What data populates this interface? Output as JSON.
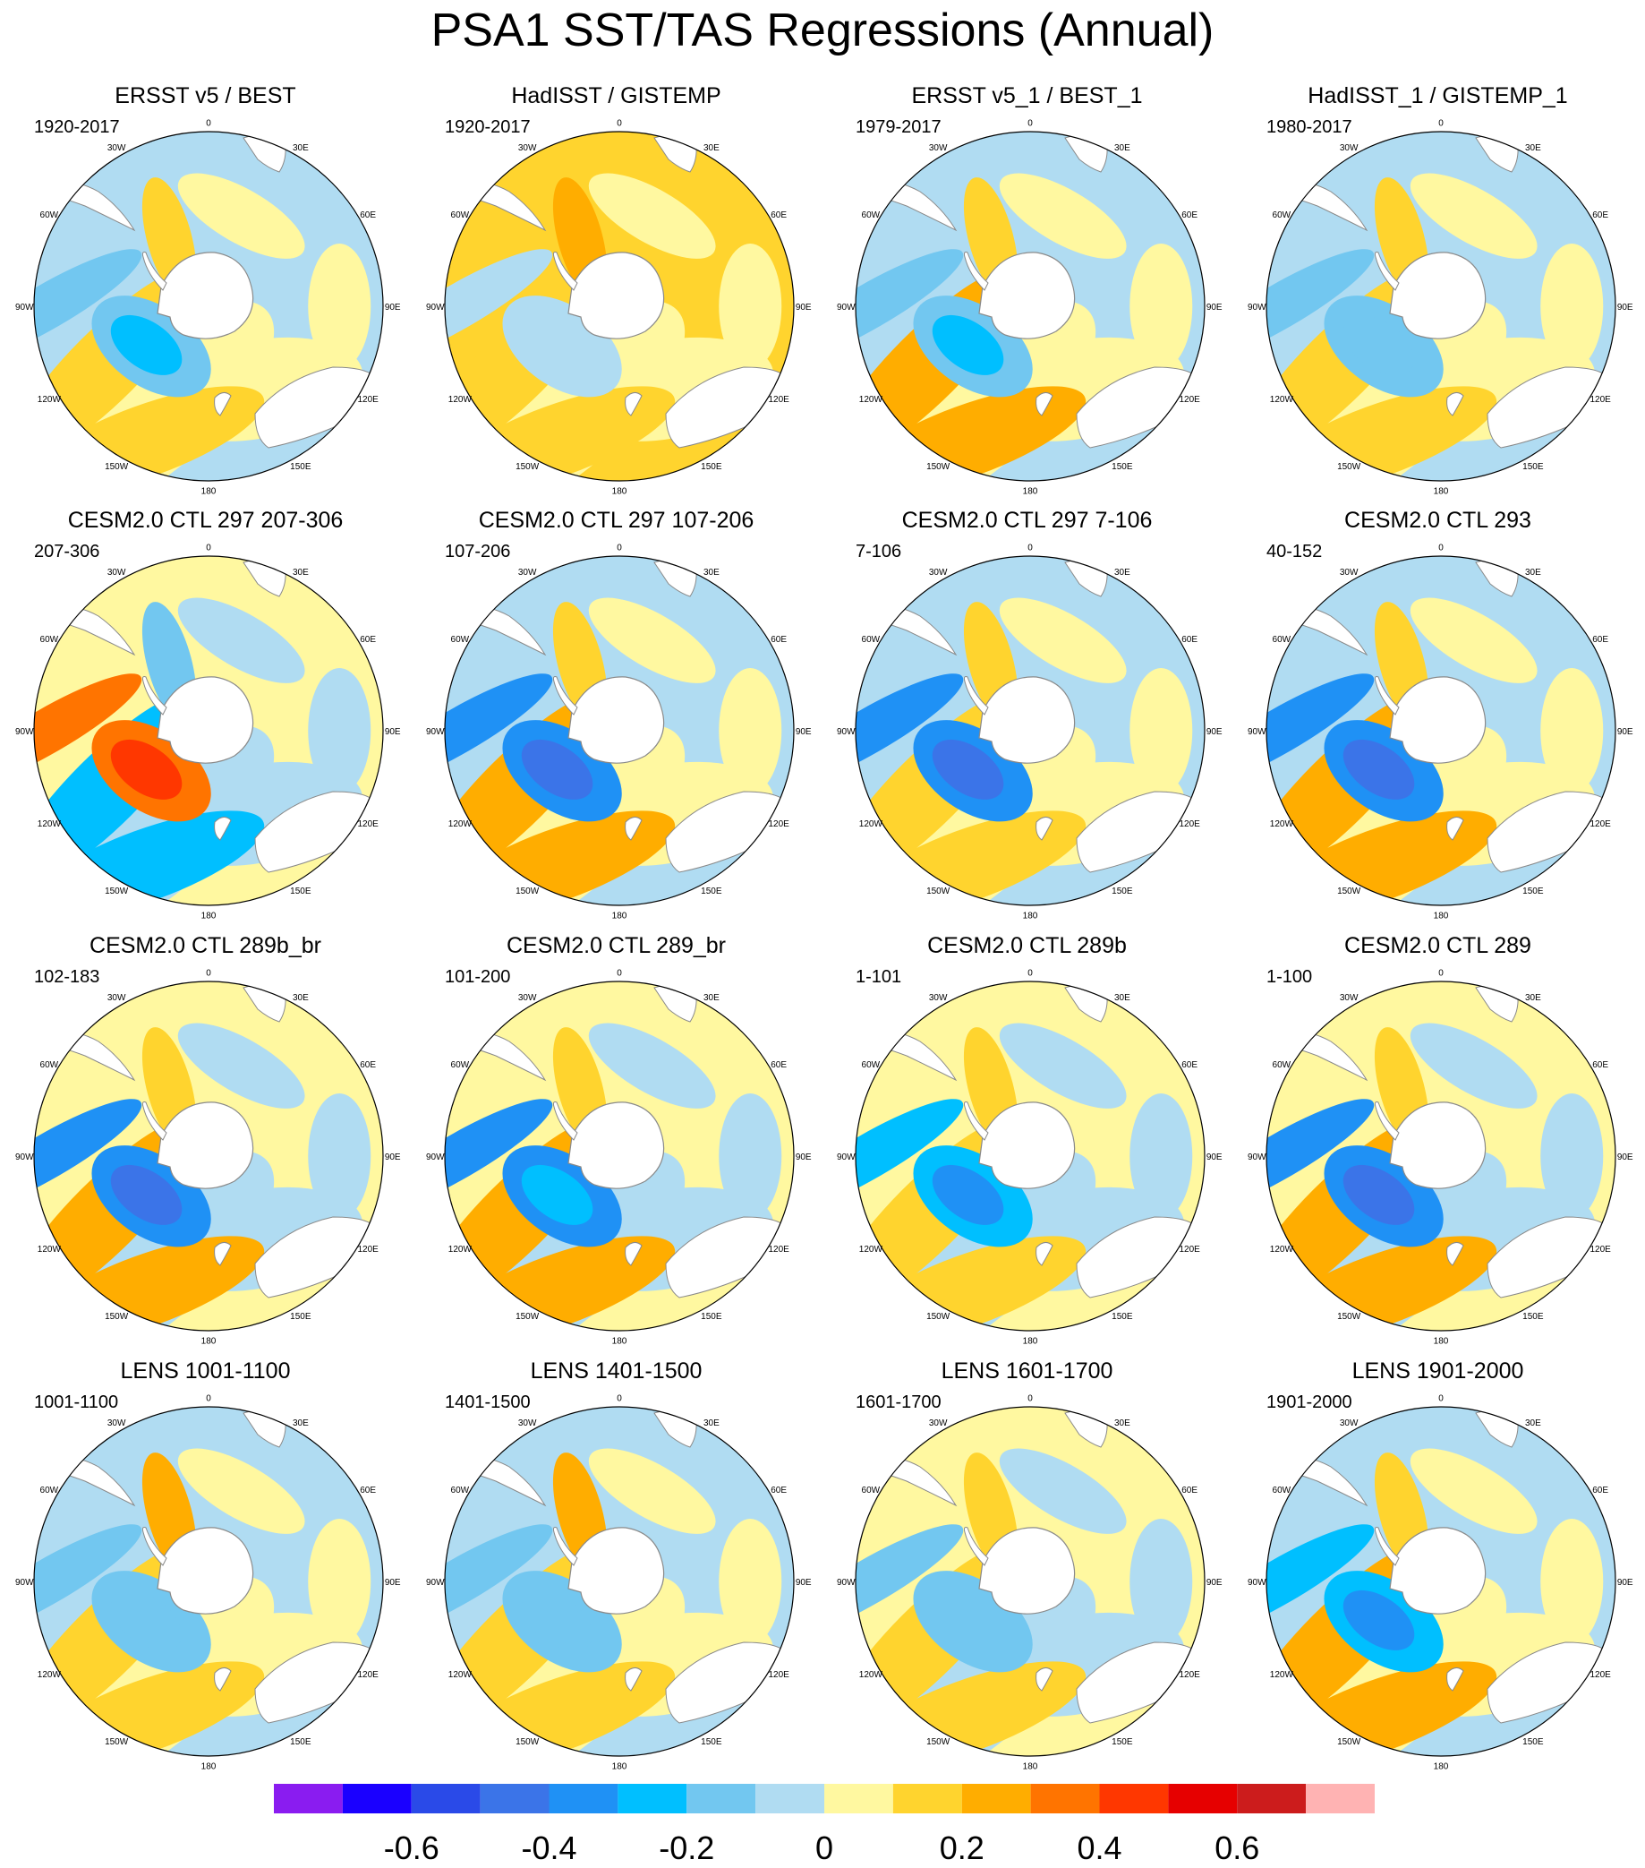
{
  "title": "PSA1 SST/TAS Regressions (Annual)",
  "lon_labels": [
    "0",
    "30E",
    "60E",
    "90E",
    "120E",
    "150E",
    "180",
    "150W",
    "120W",
    "90W",
    "60W",
    "30W"
  ],
  "panels": [
    {
      "title": "ERSST v5 / BEST",
      "period": "1920-2017"
    },
    {
      "title": "HadISST / GISTEMP",
      "period": "1920-2017"
    },
    {
      "title": "ERSST v5_1 / BEST_1",
      "period": "1979-2017"
    },
    {
      "title": "HadISST_1 / GISTEMP_1",
      "period": "1980-2017"
    },
    {
      "title": "CESM2.0 CTL 297 207-306",
      "period": "207-306"
    },
    {
      "title": "CESM2.0 CTL 297 107-206",
      "period": "107-206"
    },
    {
      "title": "CESM2.0 CTL 297 7-106",
      "period": "7-106"
    },
    {
      "title": "CESM2.0 CTL 293",
      "period": "40-152"
    },
    {
      "title": "CESM2.0 CTL 289b_br",
      "period": "102-183"
    },
    {
      "title": "CESM2.0 CTL 289_br",
      "period": "101-200"
    },
    {
      "title": "CESM2.0 CTL 289b",
      "period": "1-101"
    },
    {
      "title": "CESM2.0 CTL 289",
      "period": "1-100"
    },
    {
      "title": "LENS 1001-1100",
      "period": "1001-1100"
    },
    {
      "title": "LENS 1401-1500",
      "period": "1401-1500"
    },
    {
      "title": "LENS 1601-1700",
      "period": "1601-1700"
    },
    {
      "title": "LENS 1901-2000",
      "period": "1901-2000"
    }
  ],
  "colorbar": {
    "colors": [
      "#8a1cf0",
      "#1a00ff",
      "#2a4ae8",
      "#3b74e8",
      "#1f91f5",
      "#00bfff",
      "#72c7f0",
      "#b0dcf2",
      "#fff8a0",
      "#ffd42e",
      "#ffad00",
      "#ff7400",
      "#ff3700",
      "#e60000",
      "#cc1c1c",
      "#ffb3b3"
    ],
    "tick_labels": [
      "-0.6",
      "-0.4",
      "-0.2",
      "0",
      "0.2",
      "0.4",
      "0.6"
    ],
    "tick_boundaries": [
      2,
      4,
      6,
      8,
      10,
      12,
      14
    ]
  },
  "colors": {
    "land": "#ffffff",
    "coast": "#8a8a8a",
    "ocean_neutral_cool": "#b0dcf2",
    "ocean_neutral_warm": "#fff8a0"
  }
}
